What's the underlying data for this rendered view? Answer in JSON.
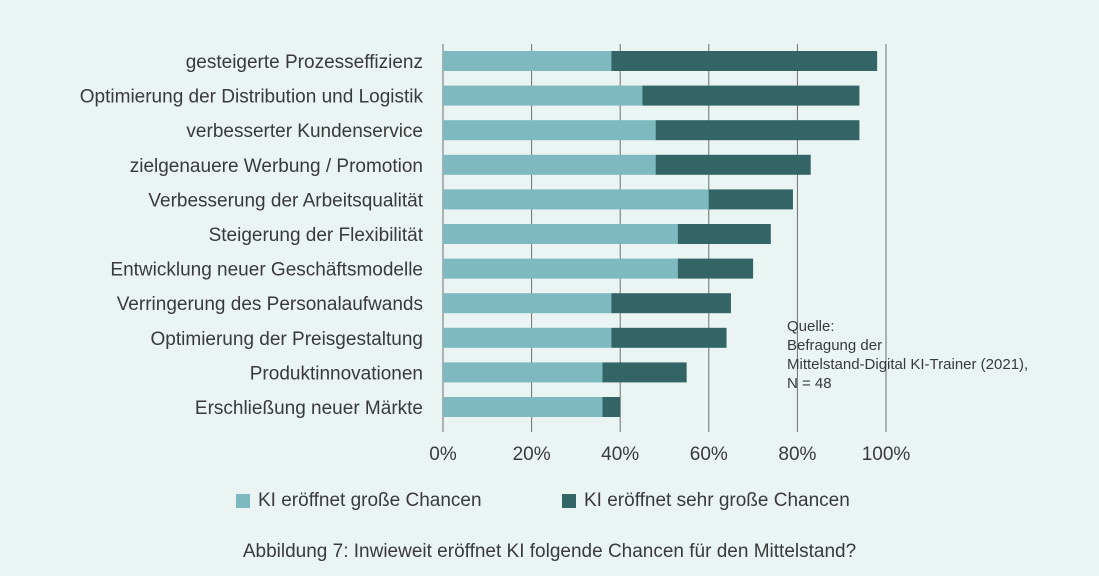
{
  "chart_data": {
    "type": "bar",
    "orientation": "horizontal",
    "stacked": true,
    "categories": [
      "gesteigerte Prozesseffizienz",
      "Optimierung der Distribution und Logistik",
      "verbesserter Kundenservice",
      "zielgenauere Werbung / Promotion",
      "Verbesserung der Arbeitsqualität",
      "Steigerung der Flexibilität",
      "Entwicklung neuer Geschäftsmodelle",
      "Verringerung des Personalaufwands",
      "Optimierung der Preisgestaltung",
      "Produktinnovationen",
      "Erschließung neuer Märkte"
    ],
    "series": [
      {
        "name": "KI eröffnet große Chancen",
        "color": "#7db9bf",
        "values": [
          38,
          45,
          48,
          48,
          60,
          53,
          53,
          38,
          38,
          36,
          36
        ]
      },
      {
        "name": "KI eröffnet sehr große Chancen",
        "color": "#336466",
        "values": [
          60,
          49,
          46,
          35,
          19,
          21,
          17,
          27,
          26,
          19,
          4
        ]
      }
    ],
    "xlim": [
      0,
      100
    ],
    "x_ticks": [
      "0%",
      "20%",
      "40%",
      "60%",
      "80%",
      "100%"
    ],
    "x_tick_values": [
      0,
      20,
      40,
      60,
      80,
      100
    ],
    "grid": true,
    "legend_position": "bottom",
    "source_lines": [
      "Quelle:",
      "Befragung der",
      "Mittelstand-Digital KI-Trainer (2021),",
      "N = 48"
    ],
    "caption": "Abbildung 7: Inwieweit eröffnet KI folgende Chancen für den Mittelstand?"
  }
}
